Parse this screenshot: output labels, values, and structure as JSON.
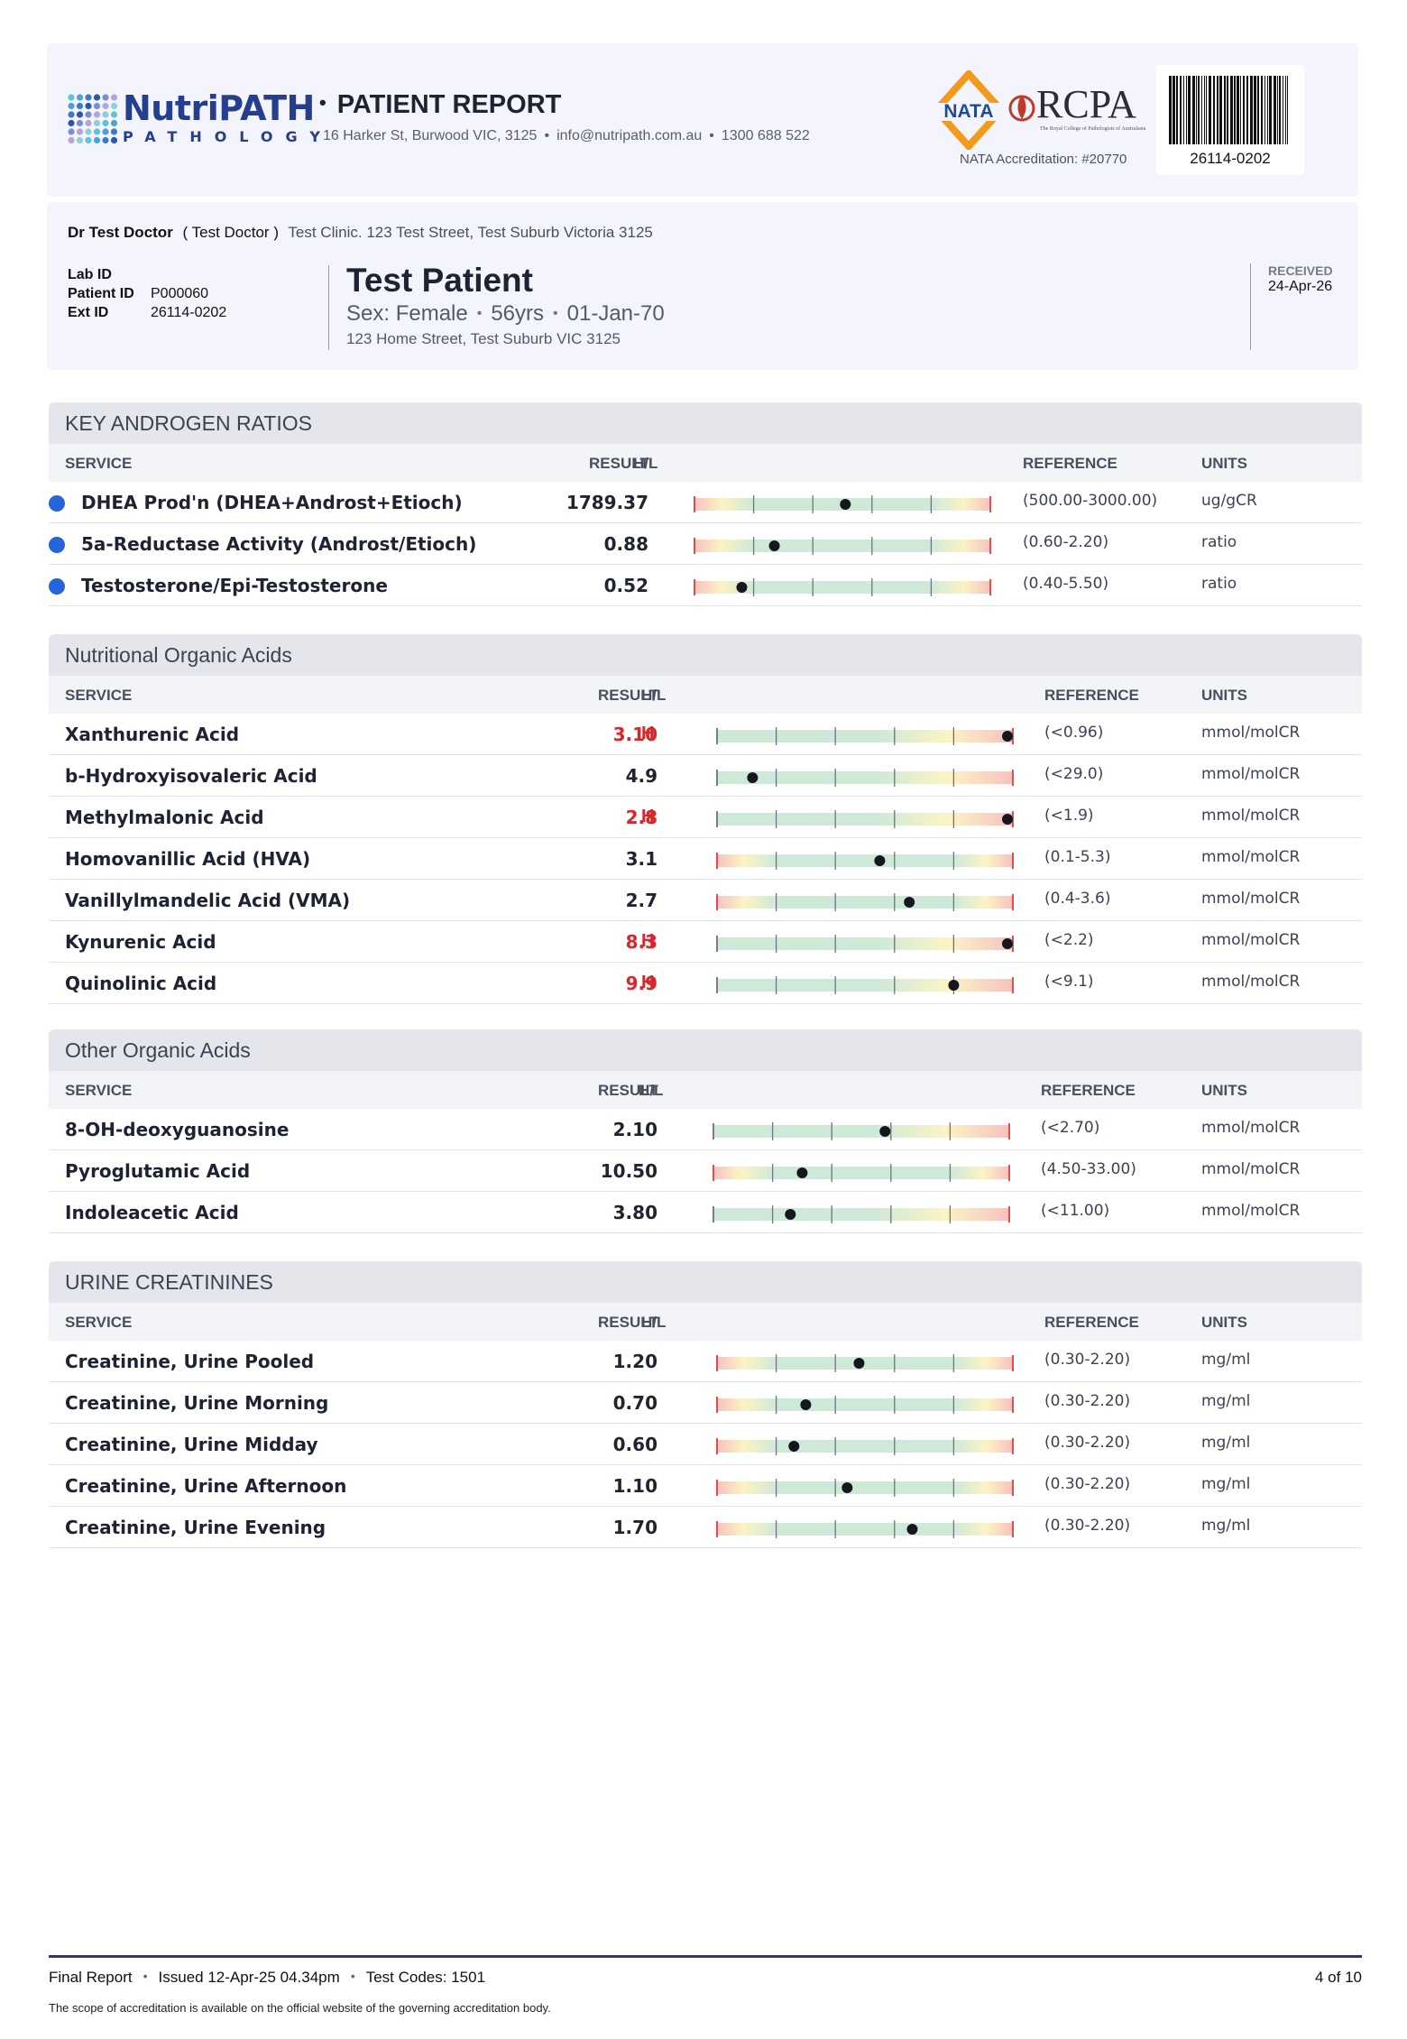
{
  "header": {
    "brand_name": "NutriPATH",
    "brand_sub": "PATHOLOGY",
    "report_title": "PATIENT REPORT",
    "address": "16 Harker St, Burwood VIC, 3125",
    "email": "info@nutripath.com.au",
    "phone": "1300 688 522",
    "nata_logo_text": "NATA",
    "rcpa_logo_text": "RCPA",
    "rcpa_sub": "The Royal College of Pathologists of Australasia",
    "nata_accreditation": "NATA Accreditation: #20770",
    "barcode_number": "26114-0202"
  },
  "patient": {
    "doctor_name": "Dr Test Doctor",
    "doctor_nick": "( Test Doctor )",
    "clinic": "Test Clinic. 123 Test Street, Test Suburb Victoria 3125",
    "lab_id_label": "Lab ID",
    "lab_id_value": "",
    "patient_id_label": "Patient ID",
    "patient_id_value": "P000060",
    "ext_id_label": "Ext ID",
    "ext_id_value": "26114-0202",
    "name": "Test Patient",
    "sex": "Sex: Female",
    "age": "56yrs",
    "dob": "01-Jan-70",
    "address": "123 Home Street, Test Suburb VIC 3125",
    "received_label": "RECEIVED",
    "received_date": "24-Apr-26"
  },
  "columns": {
    "service": "SERVICE",
    "result": "RESULT",
    "hl": "H/L",
    "reference": "REFERENCE",
    "units": "UNITS"
  },
  "colors": {
    "high_text": "#d8262c",
    "marker_blue": "#2664d9",
    "gauge_green": "#cfe9d8",
    "gauge_yellow": "#fbf4c4",
    "gauge_red": "#f7c1c1",
    "brand_blue": "#253f8e"
  },
  "sections": [
    {
      "title": "KEY ANDROGEN RATIOS",
      "rows": [
        {
          "service": "DHEA Prod'n (DHEA+Androst+Etioch)",
          "result": "1789.37",
          "flag": "",
          "reference": "(500.00-3000.00)",
          "units": "ug/gCR",
          "gauge": "both",
          "marker": 0.51
        },
        {
          "service": "5a-Reductase Activity (Androst/Etioch)",
          "result": "0.88",
          "flag": "",
          "reference": "(0.60-2.20)",
          "units": "ratio",
          "gauge": "both",
          "marker": 0.27
        },
        {
          "service": "Testosterone/Epi-Testosterone",
          "result": "0.52",
          "flag": "",
          "reference": "(0.40-5.50)",
          "units": "ratio",
          "gauge": "both",
          "marker": 0.16
        }
      ]
    },
    {
      "title": "Nutritional Organic Acids",
      "rows": [
        {
          "service": "Xanthurenic Acid",
          "result": "3.10",
          "flag": "H",
          "reference": "(<0.96)",
          "units": "mmol/molCR",
          "gauge": "upper",
          "marker": 1.0
        },
        {
          "service": "b-Hydroxyisovaleric Acid",
          "result": "4.9",
          "flag": "",
          "reference": "(<29.0)",
          "units": "mmol/molCR",
          "gauge": "upper",
          "marker": 0.12
        },
        {
          "service": "Methylmalonic Acid",
          "result": "2.8",
          "flag": "H",
          "reference": "(<1.9)",
          "units": "mmol/molCR",
          "gauge": "upper",
          "marker": 1.0
        },
        {
          "service": "Homovanillic Acid (HVA)",
          "result": "3.1",
          "flag": "",
          "reference": "(0.1-5.3)",
          "units": "mmol/molCR",
          "gauge": "both",
          "marker": 0.55
        },
        {
          "service": "Vanillylmandelic Acid (VMA)",
          "result": "2.7",
          "flag": "",
          "reference": "(0.4-3.6)",
          "units": "mmol/molCR",
          "gauge": "both",
          "marker": 0.65
        },
        {
          "service": "Kynurenic Acid",
          "result": "8.3",
          "flag": "H",
          "reference": "(<2.2)",
          "units": "mmol/molCR",
          "gauge": "upper",
          "marker": 1.0
        },
        {
          "service": "Quinolinic Acid",
          "result": "9.9",
          "flag": "H",
          "reference": "(<9.1)",
          "units": "mmol/molCR",
          "gauge": "upper",
          "marker": 0.8
        }
      ]
    },
    {
      "title": "Other Organic Acids",
      "rows": [
        {
          "service": "8-OH-deoxyguanosine",
          "result": "2.10",
          "flag": "",
          "reference": "(<2.70)",
          "units": "mmol/molCR",
          "gauge": "upper",
          "marker": 0.58
        },
        {
          "service": "Pyroglutamic Acid",
          "result": "10.50",
          "flag": "",
          "reference": "(4.50-33.00)",
          "units": "mmol/molCR",
          "gauge": "both",
          "marker": 0.3
        },
        {
          "service": "Indoleacetic Acid",
          "result": "3.80",
          "flag": "",
          "reference": "(<11.00)",
          "units": "mmol/molCR",
          "gauge": "upper",
          "marker": 0.26
        }
      ]
    },
    {
      "title": "URINE CREATININES",
      "rows": [
        {
          "service": "Creatinine, Urine Pooled",
          "result": "1.20",
          "flag": "",
          "reference": "(0.30-2.20)",
          "units": "mg/ml",
          "gauge": "both",
          "marker": 0.48
        },
        {
          "service": "Creatinine, Urine Morning",
          "result": "0.70",
          "flag": "",
          "reference": "(0.30-2.20)",
          "units": "mg/ml",
          "gauge": "both",
          "marker": 0.3
        },
        {
          "service": "Creatinine, Urine Midday",
          "result": "0.60",
          "flag": "",
          "reference": "(0.30-2.20)",
          "units": "mg/ml",
          "gauge": "both",
          "marker": 0.26
        },
        {
          "service": "Creatinine, Urine Afternoon",
          "result": "1.10",
          "flag": "",
          "reference": "(0.30-2.20)",
          "units": "mg/ml",
          "gauge": "both",
          "marker": 0.44
        },
        {
          "service": "Creatinine, Urine Evening",
          "result": "1.70",
          "flag": "",
          "reference": "(0.30-2.20)",
          "units": "mg/ml",
          "gauge": "both",
          "marker": 0.66
        }
      ]
    }
  ],
  "footer": {
    "status": "Final Report",
    "issued": "Issued 12-Apr-25 04.34pm",
    "test_codes": "Test Codes: 1501",
    "page": "4 of 10",
    "note": "The scope of accreditation is available on the official website of the governing accreditation body."
  }
}
